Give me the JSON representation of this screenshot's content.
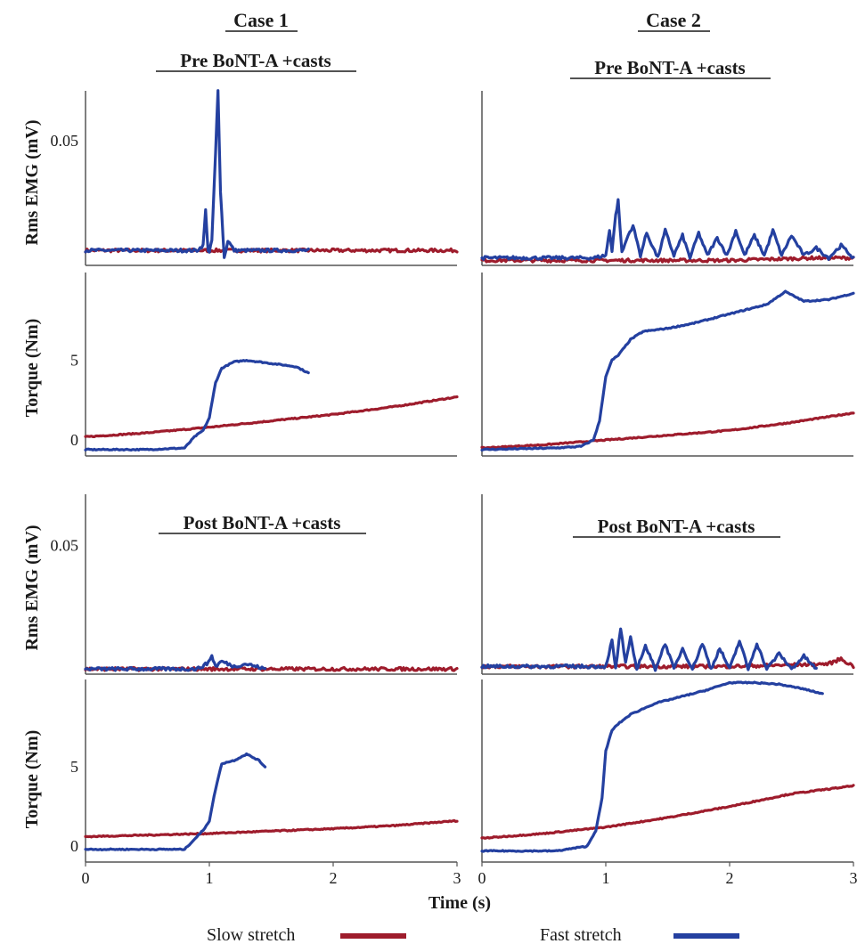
{
  "colors": {
    "slow": "#9e1c2c",
    "fast": "#2440a0",
    "axis": "#555555",
    "text": "#1a1a1a"
  },
  "headings": {
    "case1": "Case 1",
    "case2": "Case 2",
    "pre": "Pre BoNT-A +casts",
    "post": "Post BoNT-A +casts"
  },
  "axis_labels": {
    "emg": "Rms EMG (mV)",
    "torque": "Torque (Nm)",
    "time": "Time (s)"
  },
  "legend": {
    "slow": "Slow stretch",
    "fast": "Fast stretch"
  },
  "chart_data": [
    {
      "type": "line",
      "case": "Case 1",
      "condition": "Pre BoNT-A +casts",
      "signal": "Rms EMG",
      "ylabel": "Rms EMG (mV)",
      "xlim": [
        0,
        3
      ],
      "ylim": [
        0,
        0.07
      ],
      "yticks": [
        0.05
      ],
      "grid": false,
      "series": [
        {
          "name": "Slow stretch",
          "x": [
            0,
            3
          ],
          "y": [
            0.006,
            0.006
          ]
        },
        {
          "name": "Fast stretch",
          "x": [
            0,
            0.9,
            0.95,
            0.97,
            0.99,
            1.0,
            1.02,
            1.05,
            1.07,
            1.09,
            1.12,
            1.15,
            1.2,
            1.8
          ],
          "y": [
            0.006,
            0.006,
            0.008,
            0.022,
            0.006,
            0.005,
            0.01,
            0.045,
            0.07,
            0.03,
            0.003,
            0.01,
            0.006,
            0.006
          ]
        }
      ]
    },
    {
      "type": "line",
      "case": "Case 1",
      "condition": "Pre BoNT-A +casts",
      "signal": "Torque",
      "ylabel": "Torque (Nm)",
      "xlim": [
        0,
        3
      ],
      "ylim": [
        -1,
        10.5
      ],
      "yticks": [
        0,
        5
      ],
      "grid": false,
      "series": [
        {
          "name": "Slow stretch",
          "x": [
            0,
            0.5,
            1,
            1.5,
            2,
            2.5,
            3
          ],
          "y": [
            0.2,
            0.45,
            0.8,
            1.2,
            1.6,
            2.1,
            2.7
          ]
        },
        {
          "name": "Fast stretch",
          "x": [
            0,
            0.5,
            0.8,
            0.88,
            0.95,
            1.0,
            1.05,
            1.1,
            1.2,
            1.3,
            1.5,
            1.7,
            1.8
          ],
          "y": [
            -0.6,
            -0.6,
            -0.5,
            0.2,
            0.6,
            1.4,
            3.6,
            4.5,
            4.9,
            5.0,
            4.8,
            4.6,
            4.2
          ]
        }
      ]
    },
    {
      "type": "line",
      "case": "Case 2",
      "condition": "Pre BoNT-A +casts",
      "signal": "Rms EMG",
      "ylabel": "Rms EMG (mV)",
      "xlim": [
        0,
        3
      ],
      "ylim": [
        0,
        0.07
      ],
      "yticks": [],
      "grid": false,
      "series": [
        {
          "name": "Slow stretch",
          "x": [
            0,
            1,
            2,
            2.7,
            3
          ],
          "y": [
            0.002,
            0.002,
            0.002,
            0.003,
            0.003
          ]
        },
        {
          "name": "Fast stretch",
          "x": [
            0,
            0.9,
            1.0,
            1.03,
            1.05,
            1.08,
            1.1,
            1.13,
            1.18,
            1.22,
            1.28,
            1.33,
            1.42,
            1.48,
            1.55,
            1.62,
            1.68,
            1.75,
            1.82,
            1.9,
            1.98,
            2.05,
            2.12,
            2.2,
            2.28,
            2.35,
            2.42,
            2.5,
            2.6,
            2.7,
            2.8,
            2.9,
            3.0
          ],
          "y": [
            0.003,
            0.003,
            0.004,
            0.014,
            0.006,
            0.02,
            0.026,
            0.005,
            0.012,
            0.016,
            0.004,
            0.013,
            0.003,
            0.014,
            0.004,
            0.012,
            0.003,
            0.013,
            0.004,
            0.011,
            0.004,
            0.014,
            0.004,
            0.012,
            0.004,
            0.014,
            0.004,
            0.012,
            0.004,
            0.007,
            0.003,
            0.008,
            0.003
          ]
        }
      ]
    },
    {
      "type": "line",
      "case": "Case 2",
      "condition": "Pre BoNT-A +casts",
      "signal": "Torque",
      "ylabel": "Torque (Nm)",
      "xlim": [
        0,
        3
      ],
      "ylim": [
        -1,
        10.5
      ],
      "yticks": [],
      "grid": false,
      "series": [
        {
          "name": "Slow stretch",
          "x": [
            0,
            0.5,
            1,
            1.5,
            2,
            2.5,
            3
          ],
          "y": [
            -0.5,
            -0.3,
            0,
            0.3,
            0.6,
            1.1,
            1.7
          ]
        },
        {
          "name": "Fast stretch",
          "x": [
            0,
            0.6,
            0.8,
            0.9,
            0.95,
            1.0,
            1.05,
            1.1,
            1.2,
            1.3,
            1.5,
            1.7,
            2.0,
            2.3,
            2.45,
            2.6,
            2.8,
            3.0
          ],
          "y": [
            -0.6,
            -0.5,
            -0.4,
            0,
            1.2,
            4.0,
            5.0,
            5.3,
            6.3,
            6.8,
            7.0,
            7.3,
            7.9,
            8.5,
            9.3,
            8.7,
            8.8,
            9.2
          ]
        }
      ]
    },
    {
      "type": "line",
      "case": "Case 1",
      "condition": "Post BoNT-A +casts",
      "signal": "Rms EMG",
      "ylabel": "Rms EMG (mV)",
      "xlim": [
        0,
        3
      ],
      "ylim": [
        0,
        0.07
      ],
      "yticks": [
        0.05
      ],
      "grid": false,
      "series": [
        {
          "name": "Slow stretch",
          "x": [
            0,
            3
          ],
          "y": [
            0.002,
            0.002
          ]
        },
        {
          "name": "Fast stretch",
          "x": [
            0,
            0.9,
            0.98,
            1.02,
            1.05,
            1.1,
            1.2,
            1.3,
            1.45
          ],
          "y": [
            0.002,
            0.002,
            0.004,
            0.007,
            0.003,
            0.005,
            0.003,
            0.004,
            0.002
          ]
        }
      ]
    },
    {
      "type": "line",
      "case": "Case 1",
      "condition": "Post BoNT-A +casts",
      "signal": "Torque",
      "ylabel": "Torque (Nm)",
      "xlim": [
        0,
        3
      ],
      "ylim": [
        -1,
        10.5
      ],
      "yticks": [
        0,
        5
      ],
      "grid": false,
      "series": [
        {
          "name": "Slow stretch",
          "x": [
            0,
            0.5,
            1,
            1.5,
            2,
            2.5,
            3
          ],
          "y": [
            0.6,
            0.7,
            0.8,
            0.95,
            1.1,
            1.3,
            1.6
          ]
        },
        {
          "name": "Fast stretch",
          "x": [
            0,
            0.8,
            0.85,
            0.9,
            0.95,
            1.0,
            1.05,
            1.1,
            1.2,
            1.3,
            1.4,
            1.45
          ],
          "y": [
            -0.2,
            -0.2,
            0.2,
            0.6,
            1.0,
            1.6,
            3.6,
            5.2,
            5.4,
            5.8,
            5.4,
            5.0
          ]
        }
      ]
    },
    {
      "type": "line",
      "case": "Case 2",
      "condition": "Post BoNT-A +casts",
      "signal": "Rms EMG",
      "ylabel": "Rms EMG (mV)",
      "xlim": [
        0,
        3
      ],
      "ylim": [
        0,
        0.07
      ],
      "yticks": [],
      "grid": false,
      "series": [
        {
          "name": "Slow stretch",
          "x": [
            0,
            1,
            2,
            2.8,
            2.9,
            3.0
          ],
          "y": [
            0.003,
            0.003,
            0.003,
            0.004,
            0.006,
            0.003
          ]
        },
        {
          "name": "Fast stretch",
          "x": [
            0,
            1.0,
            1.05,
            1.08,
            1.12,
            1.16,
            1.2,
            1.25,
            1.32,
            1.4,
            1.48,
            1.55,
            1.62,
            1.7,
            1.78,
            1.85,
            1.92,
            2.0,
            2.08,
            2.15,
            2.22,
            2.3,
            2.4,
            2.5,
            2.6,
            2.7
          ],
          "y": [
            0.003,
            0.003,
            0.013,
            0.002,
            0.018,
            0.004,
            0.014,
            0.002,
            0.011,
            0.002,
            0.012,
            0.002,
            0.01,
            0.002,
            0.012,
            0.002,
            0.01,
            0.002,
            0.013,
            0.002,
            0.012,
            0.002,
            0.008,
            0.002,
            0.007,
            0.002
          ]
        }
      ]
    },
    {
      "type": "line",
      "case": "Case 2",
      "condition": "Post BoNT-A +casts",
      "signal": "Torque",
      "ylabel": "Torque (Nm)",
      "xlim": [
        0,
        3
      ],
      "ylim": [
        -1,
        10.5
      ],
      "yticks": [],
      "grid": false,
      "xticks": [
        0,
        1,
        2,
        3
      ],
      "series": [
        {
          "name": "Slow stretch",
          "x": [
            0,
            0.5,
            1,
            1.5,
            2,
            2.5,
            3
          ],
          "y": [
            0.5,
            0.8,
            1.2,
            1.8,
            2.5,
            3.3,
            3.8
          ]
        },
        {
          "name": "Fast stretch",
          "x": [
            0,
            0.6,
            0.85,
            0.92,
            0.97,
            1.0,
            1.05,
            1.1,
            1.2,
            1.4,
            1.6,
            1.8,
            2.0,
            2.2,
            2.4,
            2.6,
            2.75
          ],
          "y": [
            -0.3,
            -0.3,
            0,
            1.0,
            3.0,
            6.0,
            7.3,
            7.7,
            8.3,
            9.0,
            9.4,
            9.8,
            10.3,
            10.3,
            10.2,
            9.9,
            9.6
          ]
        }
      ]
    }
  ]
}
